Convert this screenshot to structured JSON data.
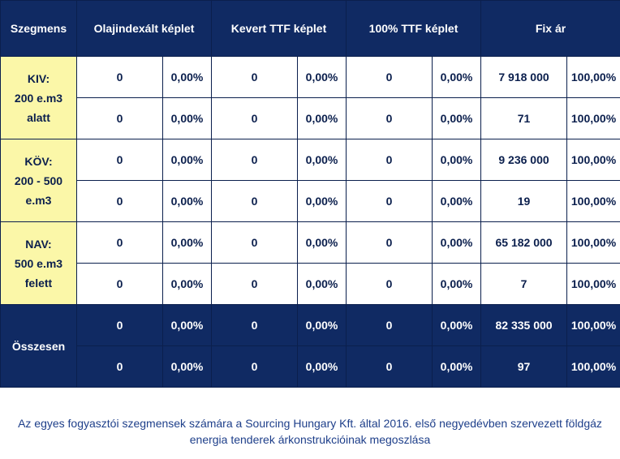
{
  "header": {
    "segment": "Szegmens",
    "col1": "Olajindexált képlet",
    "col2": "Kevert TTF képlet",
    "col3": "100% TTF képlet",
    "col4": "Fix ár"
  },
  "segments": [
    {
      "line1": "KIV:",
      "line2": "200 e.m3",
      "line3": "alatt"
    },
    {
      "line1": "KÖV:",
      "line2": "200 - 500",
      "line3": "e.m3"
    },
    {
      "line1": "NAV:",
      "line2": "500 e.m3",
      "line3": "felett"
    }
  ],
  "rows": [
    [
      "0",
      "0,00%",
      "0",
      "0,00%",
      "0",
      "0,00%",
      "7 918 000",
      "100,00%"
    ],
    [
      "0",
      "0,00%",
      "0",
      "0,00%",
      "0",
      "0,00%",
      "71",
      "100,00%"
    ],
    [
      "0",
      "0,00%",
      "0",
      "0,00%",
      "0",
      "0,00%",
      "9 236 000",
      "100,00%"
    ],
    [
      "0",
      "0,00%",
      "0",
      "0,00%",
      "0",
      "0,00%",
      "19",
      "100,00%"
    ],
    [
      "0",
      "0,00%",
      "0",
      "0,00%",
      "0",
      "0,00%",
      "65 182 000",
      "100,00%"
    ],
    [
      "0",
      "0,00%",
      "0",
      "0,00%",
      "0",
      "0,00%",
      "7",
      "100,00%"
    ]
  ],
  "total": {
    "label": "Összesen",
    "rows": [
      [
        "0",
        "0,00%",
        "0",
        "0,00%",
        "0",
        "0,00%",
        "82 335 000",
        "100,00%"
      ],
      [
        "0",
        "0,00%",
        "0",
        "0,00%",
        "0",
        "0,00%",
        "97",
        "100,00%"
      ]
    ]
  },
  "caption": {
    "line1": "Az egyes fogyasztói szegmensek számára a Sourcing Hungary Kft. által 2016. első negyedévben szervezett földgáz",
    "line2": "energia tenderek árkonstrukcióinak megoszlása"
  }
}
